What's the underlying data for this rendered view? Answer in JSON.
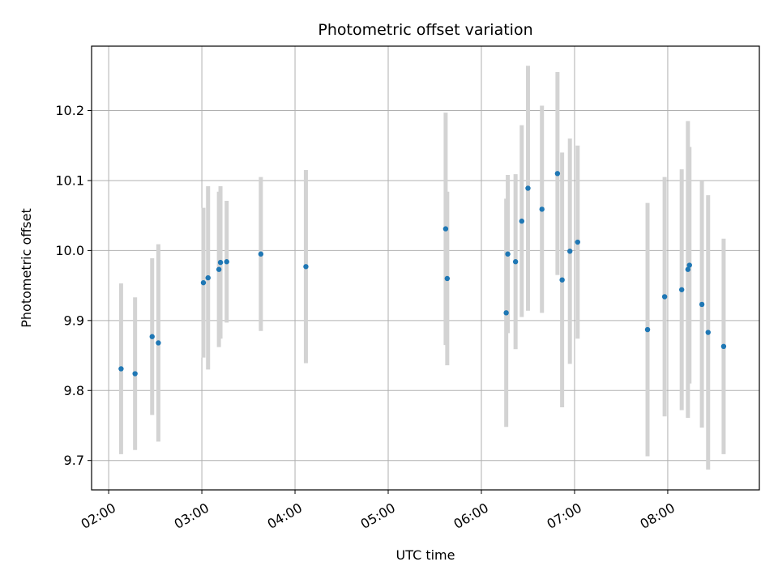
{
  "chart_data": {
    "type": "scatter",
    "title": "Photometric offset variation",
    "xlabel": "UTC time",
    "ylabel": "Photometric offset",
    "xlim": [
      "01:49",
      "08:59"
    ],
    "ylim": [
      9.658,
      10.292
    ],
    "grid": true,
    "x_tick_labels": [
      "02:00",
      "03:00",
      "04:00",
      "05:00",
      "06:00",
      "07:00",
      "08:00"
    ],
    "y_tick_labels": [
      "9.7",
      "9.8",
      "9.9",
      "10.0",
      "10.1",
      "10.2"
    ],
    "colors": {
      "point": "#1f77b4",
      "errorbar": "#d3d3d3",
      "grid": "#b0b0b0"
    },
    "points": [
      {
        "x": "02:08",
        "y": 9.831,
        "yerr": 0.122
      },
      {
        "x": "02:17",
        "y": 9.824,
        "yerr": 0.109
      },
      {
        "x": "02:28",
        "y": 9.877,
        "yerr": 0.112
      },
      {
        "x": "02:32",
        "y": 9.868,
        "yerr": 0.141
      },
      {
        "x": "03:01",
        "y": 9.954,
        "yerr": 0.107
      },
      {
        "x": "03:04",
        "y": 9.961,
        "yerr": 0.131
      },
      {
        "x": "03:11",
        "y": 9.973,
        "yerr": 0.111
      },
      {
        "x": "03:12",
        "y": 9.983,
        "yerr": 0.109
      },
      {
        "x": "03:16",
        "y": 9.984,
        "yerr": 0.087
      },
      {
        "x": "03:38",
        "y": 9.995,
        "yerr": 0.11
      },
      {
        "x": "04:07",
        "y": 9.977,
        "yerr": 0.138
      },
      {
        "x": "05:37",
        "y": 10.031,
        "yerr": 0.166
      },
      {
        "x": "05:38",
        "y": 9.96,
        "yerr": 0.124
      },
      {
        "x": "06:16",
        "y": 9.911,
        "yerr": 0.163
      },
      {
        "x": "06:17",
        "y": 9.995,
        "yerr": 0.113
      },
      {
        "x": "06:22",
        "y": 9.984,
        "yerr": 0.125
      },
      {
        "x": "06:26",
        "y": 10.042,
        "yerr": 0.137
      },
      {
        "x": "06:30",
        "y": 10.089,
        "yerr": 0.175
      },
      {
        "x": "06:39",
        "y": 10.059,
        "yerr": 0.148
      },
      {
        "x": "06:49",
        "y": 10.11,
        "yerr": 0.145
      },
      {
        "x": "06:52",
        "y": 9.958,
        "yerr": 0.182
      },
      {
        "x": "06:57",
        "y": 9.999,
        "yerr": 0.161
      },
      {
        "x": "07:02",
        "y": 10.012,
        "yerr": 0.138
      },
      {
        "x": "07:47",
        "y": 9.887,
        "yerr": 0.181
      },
      {
        "x": "07:58",
        "y": 9.934,
        "yerr": 0.171
      },
      {
        "x": "08:09",
        "y": 9.944,
        "yerr": 0.172
      },
      {
        "x": "08:13",
        "y": 9.973,
        "yerr": 0.212
      },
      {
        "x": "08:14",
        "y": 9.979,
        "yerr": 0.169
      },
      {
        "x": "08:22",
        "y": 9.923,
        "yerr": 0.176
      },
      {
        "x": "08:26",
        "y": 9.883,
        "yerr": 0.196
      },
      {
        "x": "08:36",
        "y": 9.863,
        "yerr": 0.154
      }
    ]
  }
}
